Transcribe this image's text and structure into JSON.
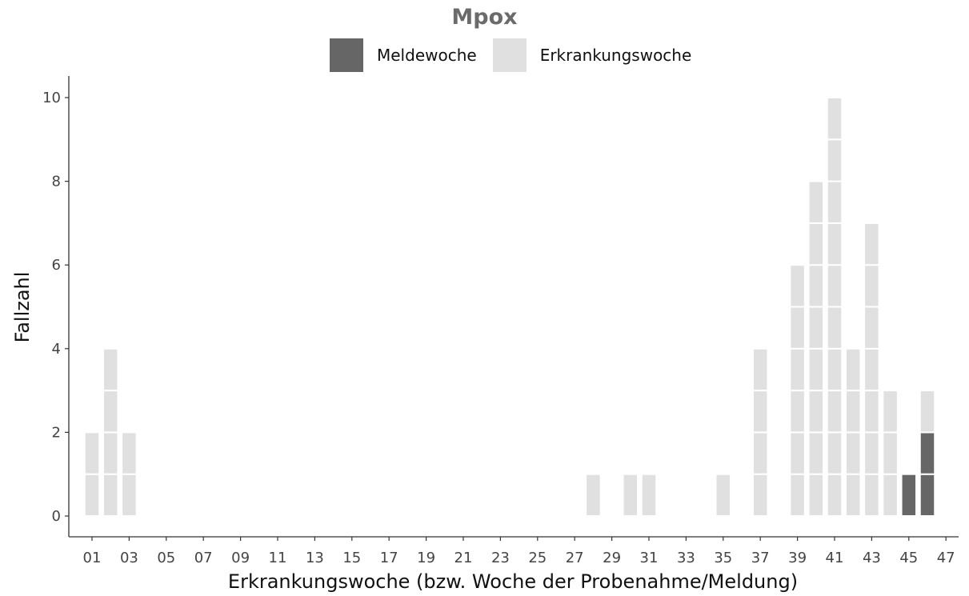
{
  "chart_data": {
    "type": "bar",
    "stacking": "stacked-unit-blocks",
    "title": "Mpox",
    "xlabel": "Erkrankungswoche (bzw. Woche der Probenahme/Meldung)",
    "ylabel": "Fallzahl",
    "xlim": [
      0,
      47
    ],
    "ylim": [
      0,
      10
    ],
    "x_ticks": [
      "01",
      "03",
      "05",
      "07",
      "09",
      "11",
      "13",
      "15",
      "17",
      "19",
      "21",
      "23",
      "25",
      "27",
      "29",
      "31",
      "33",
      "35",
      "37",
      "39",
      "41",
      "43",
      "45",
      "47"
    ],
    "y_ticks": [
      0,
      2,
      4,
      6,
      8,
      10
    ],
    "legend_position": "top",
    "series": [
      {
        "name": "Meldewoche",
        "color": "#666666",
        "x": [
          45,
          46
        ],
        "values": [
          1,
          2
        ]
      },
      {
        "name": "Erkrankungswoche",
        "color": "#e0e0e0",
        "x": [
          1,
          2,
          3,
          28,
          30,
          31,
          35,
          37,
          39,
          40,
          41,
          42,
          43,
          44,
          46
        ],
        "values": [
          2,
          4,
          2,
          1,
          1,
          1,
          1,
          4,
          6,
          8,
          10,
          4,
          7,
          3,
          1
        ]
      }
    ]
  }
}
